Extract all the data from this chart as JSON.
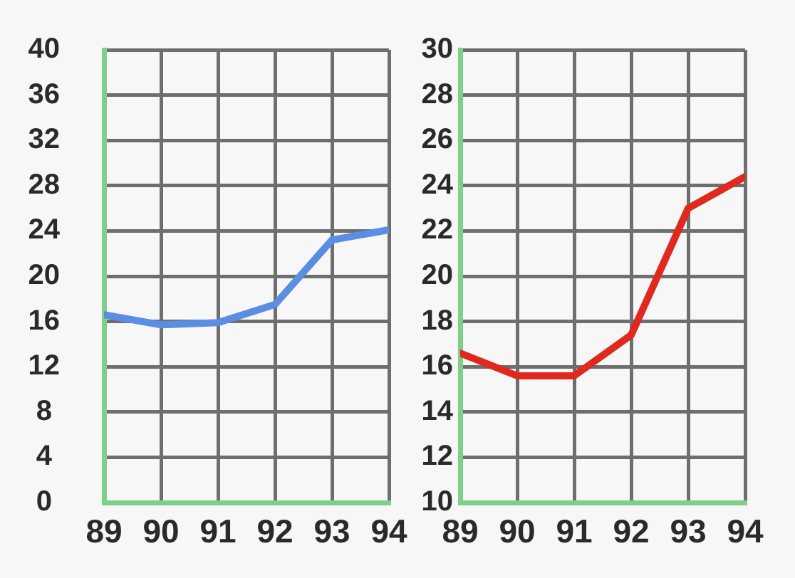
{
  "chart_data": [
    {
      "type": "line",
      "x": [
        89,
        90,
        91,
        92,
        93,
        94
      ],
      "xlim": [
        89,
        94
      ],
      "xticks": [
        89,
        90,
        91,
        92,
        93,
        94
      ],
      "ylim": [
        0,
        40
      ],
      "yticks": [
        0,
        4,
        8,
        12,
        16,
        20,
        24,
        28,
        32,
        36,
        40
      ],
      "grid": true,
      "series": [
        {
          "color": "#5b8de2",
          "values": [
            16.6,
            15.7,
            15.9,
            17.5,
            23.2,
            24.1
          ]
        }
      ]
    },
    {
      "type": "line",
      "x": [
        89,
        90,
        91,
        92,
        93,
        94
      ],
      "xlim": [
        89,
        94
      ],
      "xticks": [
        89,
        90,
        91,
        92,
        93,
        94
      ],
      "ylim": [
        10,
        30
      ],
      "yticks": [
        10,
        12,
        14,
        16,
        18,
        20,
        22,
        24,
        26,
        28,
        30
      ],
      "grid": true,
      "series": [
        {
          "color": "#e0281c",
          "values": [
            16.6,
            15.6,
            15.6,
            17.4,
            23.0,
            24.4
          ]
        }
      ]
    }
  ]
}
